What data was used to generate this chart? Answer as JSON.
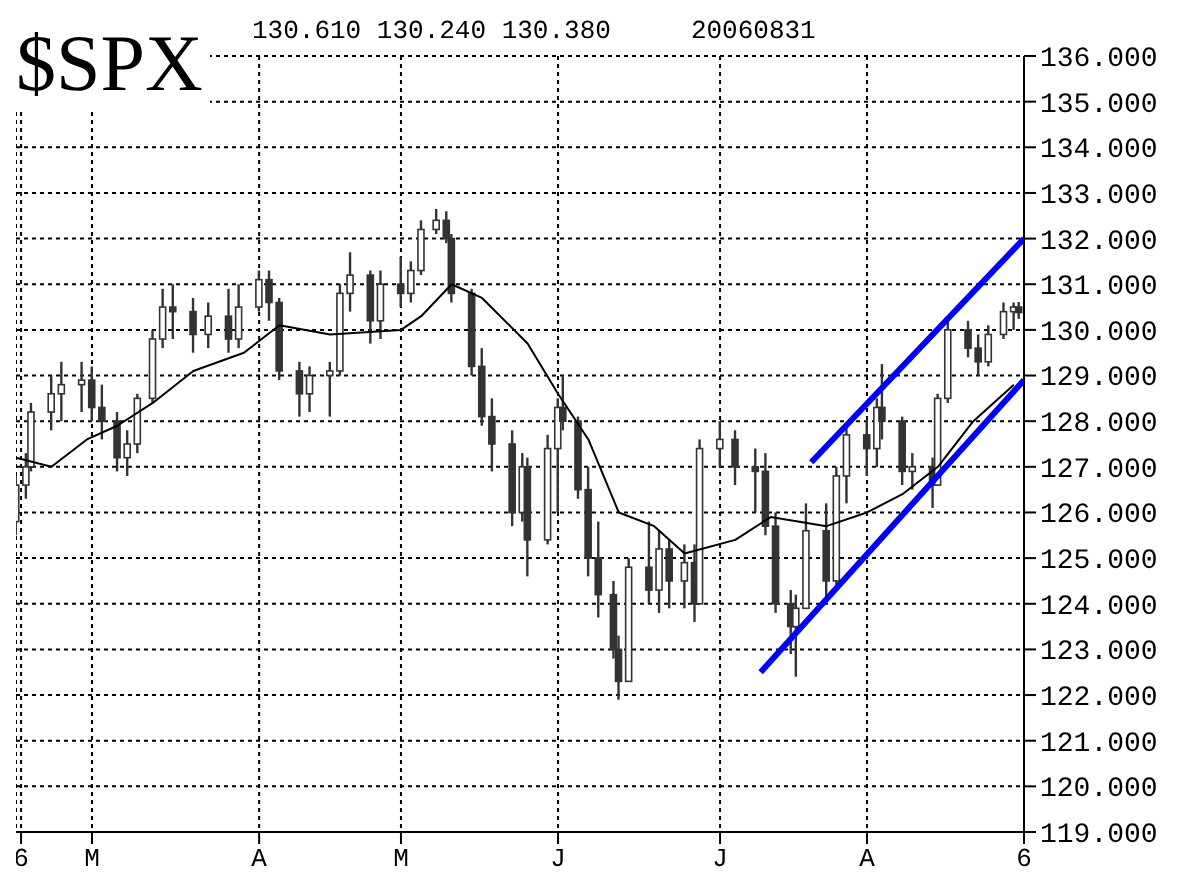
{
  "chart_data": {
    "type": "candlestick",
    "title": "$SPX",
    "annotations": [
      "130.610 130.240 130.380",
      "20060831"
    ],
    "color": "#333333",
    "x": [
      "2006-02-14",
      "2006-02-16",
      "2006-02-17",
      "2006-02-21",
      "2006-02-23",
      "2006-02-27",
      "2006-03-01",
      "2006-03-03",
      "2006-03-06",
      "2006-03-08",
      "2006-03-10",
      "2006-03-13",
      "2006-03-15",
      "2006-03-17",
      "2006-03-21",
      "2006-03-24",
      "2006-03-28",
      "2006-03-30",
      "2006-04-03",
      "2006-04-05",
      "2006-04-07",
      "2006-04-11",
      "2006-04-13",
      "2006-04-17",
      "2006-04-19",
      "2006-04-21",
      "2006-04-25",
      "2006-04-27",
      "2006-05-01",
      "2006-05-03",
      "2006-05-05",
      "2006-05-08",
      "2006-05-10",
      "2006-05-11",
      "2006-05-15",
      "2006-05-17",
      "2006-05-19",
      "2006-05-23",
      "2006-05-25",
      "2006-05-26",
      "2006-05-30",
      "2006-06-01",
      "2006-06-02",
      "2006-06-05",
      "2006-06-07",
      "2006-06-09",
      "2006-06-12",
      "2006-06-13",
      "2006-06-15",
      "2006-06-19",
      "2006-06-21",
      "2006-06-23",
      "2006-06-26",
      "2006-06-28",
      "2006-06-29",
      "2006-07-03",
      "2006-07-06",
      "2006-07-10",
      "2006-07-12",
      "2006-07-14",
      "2006-07-17",
      "2006-07-18",
      "2006-07-20",
      "2006-07-24",
      "2006-07-26",
      "2006-07-28",
      "2006-08-01",
      "2006-08-03",
      "2006-08-04",
      "2006-08-08",
      "2006-08-10",
      "2006-08-14",
      "2006-08-15",
      "2006-08-17",
      "2006-08-21",
      "2006-08-23",
      "2006-08-25",
      "2006-08-28",
      "2006-08-30",
      "2006-08-31"
    ],
    "ohlc": [
      [
        125.8,
        126.8,
        125.5,
        126.6
      ],
      [
        126.6,
        127.3,
        126.3,
        127.0
      ],
      [
        127.0,
        128.4,
        126.9,
        128.2
      ],
      [
        128.2,
        129.0,
        127.8,
        128.6
      ],
      [
        128.6,
        129.3,
        128.0,
        128.8
      ],
      [
        128.8,
        129.3,
        128.2,
        128.9
      ],
      [
        128.9,
        129.2,
        128.0,
        128.3
      ],
      [
        128.3,
        128.8,
        127.6,
        128.0
      ],
      [
        128.0,
        128.2,
        126.9,
        127.2
      ],
      [
        127.2,
        127.8,
        126.8,
        127.5
      ],
      [
        127.5,
        128.6,
        127.3,
        128.5
      ],
      [
        128.5,
        130.0,
        128.4,
        129.8
      ],
      [
        129.8,
        130.9,
        129.6,
        130.5
      ],
      [
        130.5,
        131.0,
        129.8,
        130.4
      ],
      [
        130.4,
        130.7,
        129.5,
        129.9
      ],
      [
        129.9,
        130.6,
        129.6,
        130.3
      ],
      [
        130.3,
        130.9,
        129.5,
        129.8
      ],
      [
        129.8,
        131.0,
        129.6,
        130.5
      ],
      [
        130.5,
        131.3,
        130.4,
        131.1
      ],
      [
        131.1,
        131.3,
        130.2,
        130.6
      ],
      [
        130.6,
        130.7,
        128.9,
        129.1
      ],
      [
        129.1,
        129.3,
        128.1,
        128.6
      ],
      [
        128.6,
        129.2,
        128.2,
        129.0
      ],
      [
        129.0,
        129.3,
        128.1,
        129.1
      ],
      [
        129.1,
        131.0,
        129.0,
        130.8
      ],
      [
        130.8,
        131.7,
        130.4,
        131.2
      ],
      [
        131.2,
        131.3,
        129.7,
        130.2
      ],
      [
        130.2,
        131.3,
        129.8,
        131.0
      ],
      [
        131.0,
        131.6,
        130.5,
        130.8
      ],
      [
        130.8,
        131.5,
        130.6,
        131.3
      ],
      [
        131.3,
        132.4,
        131.2,
        132.2
      ],
      [
        132.2,
        132.65,
        132.1,
        132.4
      ],
      [
        132.4,
        132.6,
        131.9,
        132.0
      ],
      [
        132.0,
        132.1,
        130.6,
        130.8
      ],
      [
        130.8,
        130.9,
        129.0,
        129.2
      ],
      [
        129.2,
        129.6,
        127.9,
        128.1
      ],
      [
        128.1,
        128.5,
        126.9,
        127.5
      ],
      [
        127.5,
        127.8,
        125.7,
        126.0
      ],
      [
        126.0,
        127.3,
        125.8,
        127.0
      ],
      [
        127.0,
        127.2,
        124.6,
        125.4
      ],
      [
        125.4,
        127.7,
        125.3,
        127.4
      ],
      [
        127.4,
        128.5,
        126.0,
        128.3
      ],
      [
        128.3,
        129.0,
        127.8,
        128.0
      ],
      [
        128.0,
        128.1,
        126.3,
        126.5
      ],
      [
        126.5,
        127.0,
        124.6,
        125.0
      ],
      [
        125.0,
        125.8,
        123.7,
        124.2
      ],
      [
        124.2,
        124.5,
        122.8,
        123.0
      ],
      [
        123.0,
        123.3,
        121.9,
        122.3
      ],
      [
        122.3,
        125.0,
        122.3,
        124.8
      ],
      [
        124.8,
        125.8,
        124.0,
        124.3
      ],
      [
        124.3,
        125.6,
        123.8,
        125.2
      ],
      [
        125.2,
        125.4,
        123.9,
        124.5
      ],
      [
        124.5,
        125.3,
        123.9,
        124.9
      ],
      [
        124.9,
        125.3,
        123.6,
        124.0
      ],
      [
        124.0,
        127.6,
        124.0,
        127.4
      ],
      [
        127.4,
        128.0,
        127.0,
        127.6
      ],
      [
        127.6,
        127.8,
        126.6,
        127.0
      ],
      [
        127.0,
        127.4,
        126.0,
        126.9
      ],
      [
        126.9,
        127.3,
        125.5,
        125.7
      ],
      [
        125.7,
        126.0,
        123.8,
        124.0
      ],
      [
        124.0,
        124.3,
        122.9,
        123.5
      ],
      [
        123.5,
        124.2,
        122.4,
        123.9
      ],
      [
        123.9,
        126.2,
        123.9,
        125.6
      ],
      [
        125.6,
        126.2,
        124.0,
        124.5
      ],
      [
        124.5,
        127.0,
        124.4,
        126.8
      ],
      [
        126.8,
        127.9,
        126.2,
        127.7
      ],
      [
        127.7,
        128.0,
        126.8,
        127.4
      ],
      [
        127.4,
        128.5,
        127.0,
        128.3
      ],
      [
        128.3,
        129.25,
        127.6,
        128.0
      ],
      [
        128.0,
        128.1,
        126.6,
        126.9
      ],
      [
        126.9,
        127.3,
        126.5,
        127.0
      ],
      [
        127.0,
        127.2,
        126.1,
        126.6
      ],
      [
        126.6,
        128.6,
        126.6,
        128.5
      ],
      [
        128.5,
        130.2,
        128.4,
        130.0
      ],
      [
        130.0,
        130.2,
        129.4,
        129.6
      ],
      [
        129.6,
        129.9,
        129.0,
        129.3
      ],
      [
        129.3,
        130.1,
        129.2,
        129.9
      ],
      [
        129.9,
        130.6,
        129.8,
        130.4
      ],
      [
        130.4,
        130.6,
        130.0,
        130.5
      ],
      [
        130.5,
        130.61,
        130.24,
        130.38
      ]
    ],
    "series": [
      {
        "type": "line",
        "color": "#000000",
        "x": [
          "2006-02-14",
          "2006-02-21",
          "2006-02-28",
          "2006-03-06",
          "2006-03-13",
          "2006-03-21",
          "2006-03-31",
          "2006-04-07",
          "2006-04-17",
          "2006-05-01",
          "2006-05-05",
          "2006-05-11",
          "2006-05-17",
          "2006-05-26",
          "2006-06-01",
          "2006-06-07",
          "2006-06-13",
          "2006-06-20",
          "2006-06-26",
          "2006-07-06",
          "2006-07-13",
          "2006-07-24",
          "2006-08-01",
          "2006-08-08",
          "2006-08-15",
          "2006-08-22",
          "2006-08-30"
        ],
        "values": [
          127.2,
          127.0,
          127.6,
          127.9,
          128.4,
          129.1,
          129.5,
          130.1,
          129.9,
          130.0,
          130.3,
          131.0,
          130.7,
          129.7,
          128.6,
          127.6,
          126.0,
          125.7,
          125.1,
          125.4,
          125.9,
          125.7,
          126.0,
          126.4,
          127.0,
          128.0,
          128.8
        ]
      },
      {
        "type": "line",
        "color": "#0000ff",
        "x": [
          "2006-07-21",
          "2006-09-01"
        ],
        "values": [
          127.1,
          132.0
        ]
      },
      {
        "type": "line",
        "color": "#0000ff",
        "x": [
          "2006-07-11",
          "2006-09-01"
        ],
        "values": [
          122.5,
          128.9
        ]
      }
    ],
    "xlim": [
      "2006-02-14",
      "2006-09-01"
    ],
    "xticks": [
      {
        "value": "2006-02-15",
        "label": "6"
      },
      {
        "value": "2006-03-01",
        "label": "M"
      },
      {
        "value": "2006-04-03",
        "label": "A"
      },
      {
        "value": "2006-05-01",
        "label": "M"
      },
      {
        "value": "2006-06-01",
        "label": "J"
      },
      {
        "value": "2006-07-03",
        "label": "J"
      },
      {
        "value": "2006-08-01",
        "label": "A"
      },
      {
        "value": "2006-09-01",
        "label": "6"
      }
    ],
    "ylim": [
      119,
      136
    ],
    "yticks": [
      {
        "value": 119,
        "label": "119.000"
      },
      {
        "value": 120,
        "label": "120.000"
      },
      {
        "value": 121,
        "label": "121.000"
      },
      {
        "value": 122,
        "label": "122.000"
      },
      {
        "value": 123,
        "label": "123.000"
      },
      {
        "value": 124,
        "label": "124.000"
      },
      {
        "value": 125,
        "label": "125.000"
      },
      {
        "value": 126,
        "label": "126.000"
      },
      {
        "value": 127,
        "label": "127.000"
      },
      {
        "value": 128,
        "label": "128.000"
      },
      {
        "value": 129,
        "label": "129.000"
      },
      {
        "value": 130,
        "label": "130.000"
      },
      {
        "value": 131,
        "label": "131.000"
      },
      {
        "value": 132,
        "label": "132.000"
      },
      {
        "value": 133,
        "label": "133.000"
      },
      {
        "value": 134,
        "label": "134.000"
      },
      {
        "value": 135,
        "label": "135.000"
      },
      {
        "value": 136,
        "label": "136.000"
      }
    ],
    "grid": true
  }
}
